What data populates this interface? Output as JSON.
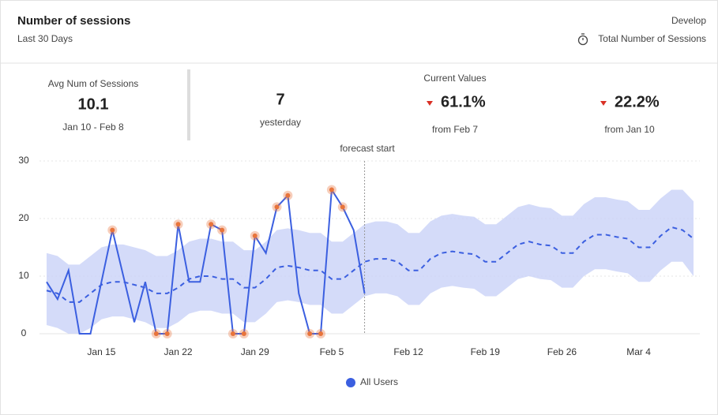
{
  "header": {
    "title": "Number of sessions",
    "subtitle": "Last 30 Days",
    "project": "Develop",
    "metric": "Total Number of Sessions"
  },
  "stats": {
    "avg_label": "Avg Num of Sessions",
    "avg_value": "10.1",
    "avg_range": "Jan 10 - Feb 8",
    "yesterday_value": "7",
    "yesterday_label": "yesterday",
    "current_label": "Current Values",
    "change1_value": "61.1%",
    "change1_label": "from Feb 7",
    "change2_value": "22.2%",
    "change2_label": "from Jan 10"
  },
  "chart_data": {
    "type": "line",
    "annotation": "forecast start",
    "forecast_start": 29,
    "categories": [
      null,
      null,
      null,
      null,
      null,
      "Jan 15",
      null,
      null,
      null,
      null,
      null,
      null,
      "Jan 22",
      null,
      null,
      null,
      null,
      null,
      null,
      "Jan 29",
      null,
      null,
      null,
      null,
      null,
      null,
      "Feb 5",
      null,
      null,
      null,
      null,
      null,
      null,
      "Feb 12",
      null,
      null,
      null,
      null,
      null,
      null,
      "Feb 19",
      null,
      null,
      null,
      null,
      null,
      null,
      "Feb 26",
      null,
      null,
      null,
      null,
      null,
      null,
      "Mar 4",
      null,
      null,
      null,
      null,
      null
    ],
    "series": [
      {
        "name": "All Users",
        "color": "#3b5fe0",
        "values": [
          9,
          6,
          11,
          0,
          0,
          9,
          18,
          10,
          2,
          9,
          0,
          0,
          19,
          9,
          9,
          19,
          18,
          0,
          0,
          17,
          14,
          22,
          24,
          7,
          0,
          0,
          25,
          22,
          18,
          7,
          null,
          null,
          null,
          null,
          null,
          null,
          null,
          null,
          null,
          null,
          null,
          null,
          null,
          null,
          null,
          null,
          null,
          null,
          null,
          null,
          null,
          null,
          null,
          null,
          null,
          null,
          null,
          null,
          null,
          null
        ],
        "anomalies": [
          false,
          false,
          false,
          false,
          false,
          false,
          true,
          false,
          false,
          false,
          true,
          true,
          true,
          false,
          false,
          true,
          true,
          true,
          true,
          true,
          false,
          true,
          true,
          false,
          true,
          true,
          true,
          true,
          false,
          false,
          false,
          false,
          false,
          false,
          false,
          false,
          false,
          false,
          false,
          false,
          false,
          false,
          false,
          false,
          false,
          false,
          false,
          false,
          false,
          false,
          false,
          false,
          false,
          false,
          false,
          false,
          false,
          false,
          false,
          false
        ],
        "forecast": [
          7.5,
          7,
          5.5,
          5.5,
          7,
          8.5,
          9,
          9,
          8.5,
          8,
          7,
          7,
          8,
          9.5,
          10,
          10,
          9.5,
          9.5,
          8,
          8,
          9.5,
          11.5,
          11.8,
          11.5,
          11,
          11,
          9.5,
          9.5,
          11,
          12.5,
          13,
          13,
          12.5,
          11,
          11,
          13,
          14,
          14.3,
          14,
          13.8,
          12.5,
          12.5,
          14,
          15.5,
          16,
          15.5,
          15.3,
          14,
          14,
          16,
          17.2,
          17.2,
          16.8,
          16.5,
          15,
          15,
          17,
          18.5,
          18,
          16.5
        ],
        "lower": [
          1.5,
          1,
          0,
          0,
          1,
          2.5,
          3,
          3,
          2.5,
          2,
          1,
          1,
          2,
          3.5,
          4,
          4,
          3.5,
          3.5,
          2,
          2,
          3.5,
          5.5,
          5.8,
          5.5,
          5,
          5,
          3.5,
          3.5,
          5,
          6.5,
          7,
          7,
          6.5,
          5,
          5,
          7,
          8,
          8.3,
          8,
          7.8,
          6.5,
          6.5,
          8,
          9.5,
          10,
          9.5,
          9.3,
          8,
          8,
          10,
          11.2,
          11.2,
          10.8,
          10.5,
          9,
          9,
          11,
          12.5,
          12.5,
          10
        ],
        "upper": [
          14,
          13.5,
          12,
          12,
          13.5,
          15,
          15.5,
          15.5,
          15,
          14.5,
          13.5,
          13.5,
          14.5,
          16,
          16.5,
          16.5,
          16,
          16,
          14.5,
          14.5,
          16,
          18,
          18.3,
          18,
          17.5,
          17.5,
          16,
          16,
          17.5,
          19,
          19.5,
          19.5,
          19,
          17.5,
          17.5,
          19.5,
          20.5,
          20.8,
          20.5,
          20.3,
          19,
          19,
          20.5,
          22,
          22.5,
          22,
          21.8,
          20.5,
          20.5,
          22.5,
          23.7,
          23.7,
          23.3,
          23,
          21.5,
          21.5,
          23.5,
          25,
          25,
          23
        ]
      }
    ],
    "band_color": "#c9d2f7",
    "anomaly_color": "#e8743b",
    "ylim": [
      0,
      30
    ],
    "yticks": [
      0,
      10,
      20,
      30
    ],
    "grid": true
  }
}
